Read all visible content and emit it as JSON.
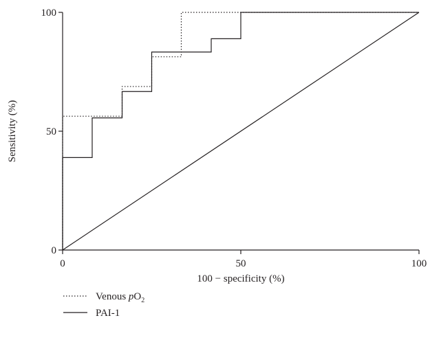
{
  "chart_data": {
    "type": "line",
    "title": "",
    "xlabel": "100 − specificity (%)",
    "ylabel": "Sensitivity (%)",
    "xlim": [
      0,
      100
    ],
    "ylim": [
      0,
      100
    ],
    "xticks": [
      0,
      50,
      100
    ],
    "yticks": [
      0,
      50,
      100
    ],
    "tick_labels_x": [
      "0",
      "50",
      "100"
    ],
    "tick_labels_y": [
      "0",
      "50",
      "100"
    ],
    "grid": false,
    "legend_position": "bottom-left",
    "series": [
      {
        "name": "Venous pO2",
        "legend_prefix": "Venous ",
        "legend_italic": "p",
        "legend_main": "O",
        "legend_sub": "2",
        "style": "dotted",
        "color": "#231f20",
        "x": [
          0,
          0,
          16.7,
          16.7,
          25,
          25,
          33.3,
          33.3,
          100
        ],
        "y": [
          0,
          56.3,
          56.3,
          68.8,
          68.8,
          81.3,
          81.3,
          100,
          100
        ]
      },
      {
        "name": "PAI-1",
        "style": "solid",
        "color": "#231f20",
        "x": [
          0,
          0,
          8.3,
          8.3,
          16.7,
          16.7,
          25,
          25,
          41.7,
          41.7,
          50,
          50,
          100
        ],
        "y": [
          0,
          38.9,
          38.9,
          55.6,
          55.6,
          66.7,
          66.7,
          83.3,
          83.3,
          88.9,
          88.9,
          100,
          100
        ]
      }
    ],
    "reference_line": {
      "x": [
        0,
        100
      ],
      "y": [
        0,
        100
      ],
      "style": "solid"
    }
  }
}
